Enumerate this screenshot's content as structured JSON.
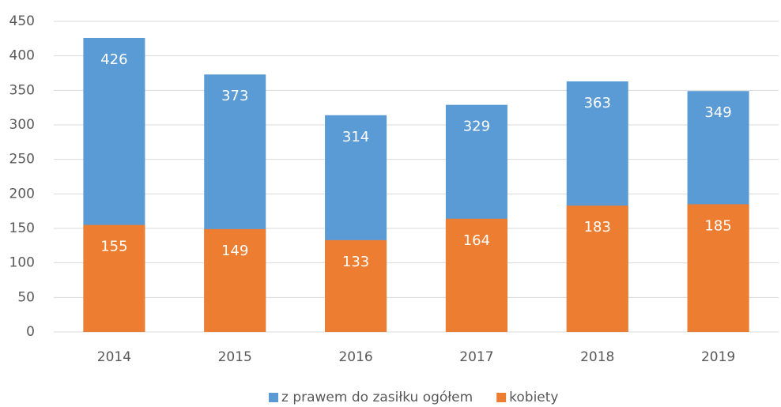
{
  "chart_data": {
    "type": "bar",
    "overlap": true,
    "categories": [
      "2014",
      "2015",
      "2016",
      "2017",
      "2018",
      "2019"
    ],
    "series": [
      {
        "name": "z prawem do zasiłku ogółem",
        "color": "#5b9bd5",
        "values": [
          426,
          373,
          314,
          329,
          363,
          349
        ]
      },
      {
        "name": "kobiety",
        "color": "#ed7d31",
        "values": [
          155,
          149,
          133,
          164,
          183,
          185
        ]
      }
    ],
    "ylim": [
      0,
      450
    ],
    "yticks": [
      0,
      50,
      100,
      150,
      200,
      250,
      300,
      350,
      400,
      450
    ],
    "grid": true,
    "legend": "bottom"
  }
}
